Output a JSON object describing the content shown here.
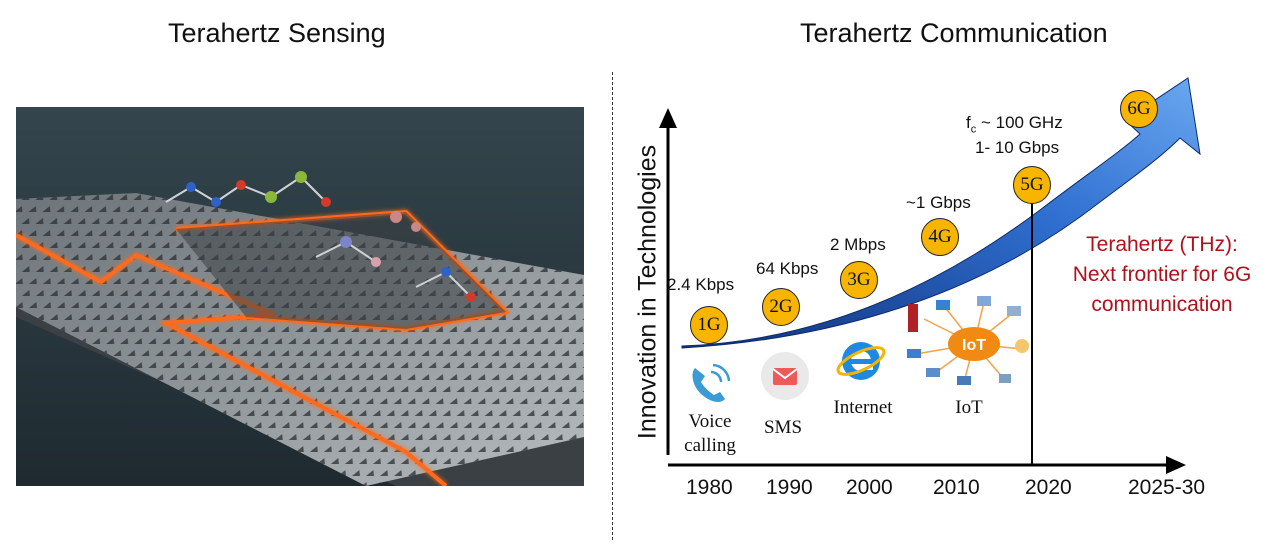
{
  "left": {
    "title": "Terahertz Sensing",
    "illustration": "metasurface-with-molecules"
  },
  "right": {
    "title": "Terahertz Communication",
    "y_axis_label": "Innovation in Technologies",
    "x_ticks": [
      "1980",
      "1990",
      "2000",
      "2010",
      "2020",
      "2025-30"
    ],
    "generations": [
      {
        "label": "1G",
        "rate": "2.4 Kbps",
        "service": "Voice calling",
        "service_icon": "phone-icon"
      },
      {
        "label": "2G",
        "rate": "64 Kbps",
        "service": "SMS",
        "service_icon": "message-icon"
      },
      {
        "label": "3G",
        "rate": "2 Mbps",
        "service": "Internet",
        "service_icon": "browser-icon"
      },
      {
        "label": "4G",
        "rate": "~1 Gbps",
        "service": "IoT",
        "service_icon": "iot-network-icon"
      },
      {
        "label": "5G",
        "fc_prefix": "f",
        "fc_sub": "c",
        "fc_rest": " ~ 100 GHz",
        "rate": "1- 10 Gbps"
      },
      {
        "label": "6G"
      }
    ],
    "iot_badge": "IoT",
    "thz_note": [
      "Terahertz (THz):",
      "Next frontier for 6G",
      "communication"
    ],
    "colors": {
      "arrow": "#2f6fd0",
      "gen_circle": "#f7b500",
      "thz_text": "#b0111b"
    }
  }
}
